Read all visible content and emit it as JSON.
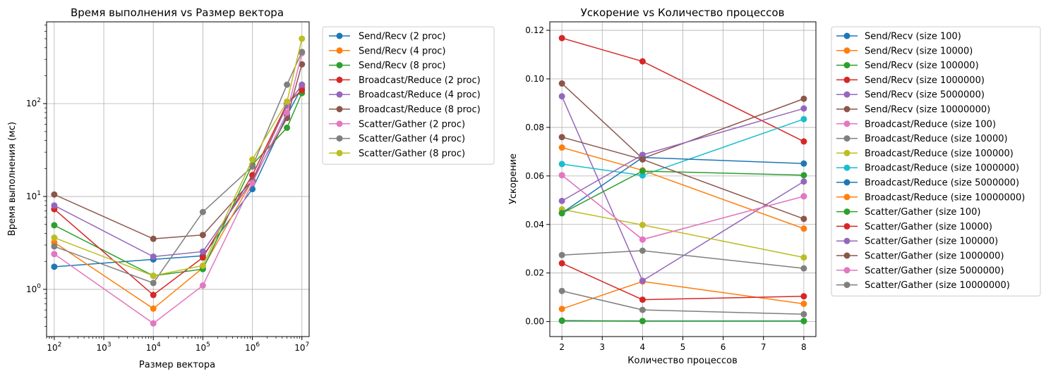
{
  "chart_data": [
    {
      "type": "line",
      "title": "Время выполнения vs Размер вектора",
      "xlabel": "Размер вектора",
      "ylabel": "Время выполнения (мс)",
      "xscale": "log",
      "yscale": "log",
      "xlim": [
        70,
        14000000
      ],
      "ylim": [
        0.31,
        760
      ],
      "xticks": [
        {
          "value": 100,
          "base": "10",
          "exp": "2"
        },
        {
          "value": 1000,
          "base": "10",
          "exp": "3"
        },
        {
          "value": 10000,
          "base": "10",
          "exp": "4"
        },
        {
          "value": 100000,
          "base": "10",
          "exp": "5"
        },
        {
          "value": 1000000,
          "base": "10",
          "exp": "6"
        },
        {
          "value": 10000000,
          "base": "10",
          "exp": "7"
        }
      ],
      "yticks": [
        {
          "value": 1,
          "base": "10",
          "exp": "0"
        },
        {
          "value": 10,
          "base": "10",
          "exp": "1"
        },
        {
          "value": 100,
          "base": "10",
          "exp": "2"
        }
      ],
      "grid": true,
      "legend_position": "outside-right",
      "x": [
        100,
        10000,
        100000,
        1000000,
        5000000,
        10000000
      ],
      "series": [
        {
          "name": "Send/Recv (2 proc)",
          "color": "#1f77b4",
          "values": [
            1.75,
            2.1,
            2.3,
            12.0,
            75,
            150
          ]
        },
        {
          "name": "Send/Recv (4 proc)",
          "color": "#ff7f0e",
          "values": [
            3.2,
            0.62,
            1.7,
            15,
            100,
            155
          ]
        },
        {
          "name": "Send/Recv (8 proc)",
          "color": "#2ca02c",
          "values": [
            4.9,
            1.4,
            1.65,
            22,
            55,
            130
          ]
        },
        {
          "name": "Broadcast/Reduce (2 proc)",
          "color": "#d62728",
          "values": [
            7.3,
            0.87,
            2.2,
            17,
            100,
            140
          ]
        },
        {
          "name": "Broadcast/Reduce (4 proc)",
          "color": "#9467bd",
          "values": [
            8.0,
            2.25,
            2.55,
            15,
            95,
            160
          ]
        },
        {
          "name": "Broadcast/Reduce (8 proc)",
          "color": "#8c564b",
          "values": [
            10.5,
            3.5,
            3.85,
            15,
            70,
            265
          ]
        },
        {
          "name": "Scatter/Gather (2 proc)",
          "color": "#e377c2",
          "values": [
            2.4,
            0.43,
            1.1,
            14,
            80,
            350
          ]
        },
        {
          "name": "Scatter/Gather (4 proc)",
          "color": "#7f7f7f",
          "values": [
            2.9,
            1.17,
            6.8,
            21,
            160,
            360
          ]
        },
        {
          "name": "Scatter/Gather (8 proc)",
          "color": "#bcbd22",
          "values": [
            3.6,
            1.4,
            1.8,
            25,
            105,
            500
          ]
        }
      ]
    },
    {
      "type": "line",
      "title": "Ускорение vs Количество процессов",
      "xlabel": "Количество процессов",
      "ylabel": "Ускорение",
      "xlim": [
        1.7,
        8.3
      ],
      "ylim": [
        -0.0062,
        0.1235
      ],
      "xticks": [
        "2",
        "3",
        "4",
        "5",
        "6",
        "7",
        "8"
      ],
      "yticks": [
        "0.00",
        "0.02",
        "0.04",
        "0.06",
        "0.08",
        "0.10",
        "0.12"
      ],
      "grid": true,
      "legend_position": "outside-right",
      "x": [
        2,
        4,
        8
      ],
      "series": [
        {
          "name": "Send/Recv (size 100)",
          "color": "#1f77b4",
          "values": [
            0.0003,
            0.0002,
            0.0002
          ]
        },
        {
          "name": "Send/Recv (size 10000)",
          "color": "#ff7f0e",
          "values": [
            0.0052,
            0.0165,
            0.0073
          ]
        },
        {
          "name": "Send/Recv (size 100000)",
          "color": "#2ca02c",
          "values": [
            0.0004,
            0.0002,
            0.0002
          ]
        },
        {
          "name": "Send/Recv (size 1000000)",
          "color": "#d62728",
          "values": [
            0.1168,
            0.1072,
            0.0742
          ]
        },
        {
          "name": "Send/Recv (size 5000000)",
          "color": "#9467bd",
          "values": [
            0.0928,
            0.0168,
            0.0577
          ]
        },
        {
          "name": "Send/Recv (size 10000000)",
          "color": "#8c564b",
          "values": [
            0.0981,
            0.0672,
            0.0918
          ]
        },
        {
          "name": "Broadcast/Reduce (size 100)",
          "color": "#e377c2",
          "values": [
            0.0603,
            0.0338,
            0.0516
          ]
        },
        {
          "name": "Broadcast/Reduce (size 10000)",
          "color": "#7f7f7f",
          "values": [
            0.0126,
            0.0048,
            0.003
          ]
        },
        {
          "name": "Broadcast/Reduce (size 100000)",
          "color": "#bcbd22",
          "values": [
            0.0462,
            0.0398,
            0.0264
          ]
        },
        {
          "name": "Broadcast/Reduce (size 1000000)",
          "color": "#17becf",
          "values": [
            0.0649,
            0.0602,
            0.0834
          ]
        },
        {
          "name": "Broadcast/Reduce (size 5000000)",
          "color": "#1f77b4",
          "values": [
            0.0447,
            0.0676,
            0.0651
          ]
        },
        {
          "name": "Broadcast/Reduce (size 10000000)",
          "color": "#ff7f0e",
          "values": [
            0.0717,
            0.0623,
            0.0383
          ]
        },
        {
          "name": "Scatter/Gather (size 100)",
          "color": "#2ca02c",
          "values": [
            0.0446,
            0.062,
            0.0603
          ]
        },
        {
          "name": "Scatter/Gather (size 10000)",
          "color": "#d62728",
          "values": [
            0.024,
            0.009,
            0.0104
          ]
        },
        {
          "name": "Scatter/Gather (size 100000)",
          "color": "#9467bd",
          "values": [
            0.0497,
            0.0687,
            0.0878
          ]
        },
        {
          "name": "Scatter/Gather (size 1000000)",
          "color": "#8c564b",
          "values": [
            0.076,
            0.0668,
            0.0423
          ]
        },
        {
          "name": "Scatter/Gather (size 5000000)",
          "color": "#e377c2",
          "values": [
            0.0603,
            0.0338,
            0.0516
          ]
        },
        {
          "name": "Scatter/Gather (size 10000000)",
          "color": "#7f7f7f",
          "values": [
            0.0274,
            0.0292,
            0.0219
          ]
        }
      ]
    }
  ]
}
